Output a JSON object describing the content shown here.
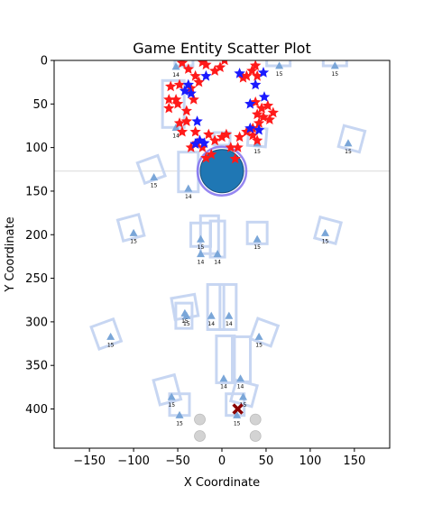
{
  "chart_data": {
    "type": "scatter",
    "title": "Game Entity Scatter Plot",
    "xlabel": "X Coordinate",
    "ylabel": "Y Coordinate",
    "xlim": [
      -190,
      190
    ],
    "ylim": [
      445,
      0
    ],
    "y_inverted": true,
    "x_ticks": [
      -150,
      -100,
      -50,
      0,
      50,
      100,
      150
    ],
    "y_ticks": [
      0,
      50,
      100,
      150,
      200,
      250,
      300,
      350,
      400
    ],
    "grid": false,
    "horizontal_line_y": 127,
    "colors": {
      "red_star": "#ff1a1a",
      "blue_star": "#1a1aff",
      "player": "#1f77b4",
      "player_ring": "#7b68ee",
      "triangle": "#7aa6d8",
      "square_outline": "#c7d6f2",
      "gray_circle": "#d3d3d3",
      "dark_x": "#8b0000"
    },
    "player": {
      "x": 0,
      "y": 127,
      "r": 24
    },
    "red_stars": [
      [
        -45,
        3
      ],
      [
        -38,
        10
      ],
      [
        -22,
        2
      ],
      [
        -18,
        5
      ],
      [
        -8,
        12
      ],
      [
        -2,
        8
      ],
      [
        3,
        0
      ],
      [
        38,
        6
      ],
      [
        34,
        12
      ],
      [
        28,
        18
      ],
      [
        24,
        20
      ],
      [
        -30,
        18
      ],
      [
        -26,
        25
      ],
      [
        -48,
        28
      ],
      [
        -35,
        32
      ],
      [
        -58,
        30
      ],
      [
        -60,
        45
      ],
      [
        -50,
        50
      ],
      [
        -40,
        58
      ],
      [
        -32,
        45
      ],
      [
        -60,
        55
      ],
      [
        -48,
        72
      ],
      [
        -45,
        82
      ],
      [
        -40,
        70
      ],
      [
        -30,
        82
      ],
      [
        -28,
        95
      ],
      [
        -35,
        100
      ],
      [
        -22,
        100
      ],
      [
        -15,
        85
      ],
      [
        -8,
        92
      ],
      [
        0,
        88
      ],
      [
        5,
        85
      ],
      [
        10,
        100
      ],
      [
        18,
        100
      ],
      [
        20,
        88
      ],
      [
        28,
        82
      ],
      [
        35,
        86
      ],
      [
        40,
        92
      ],
      [
        35,
        78
      ],
      [
        42,
        72
      ],
      [
        47,
        65
      ],
      [
        52,
        52
      ],
      [
        58,
        60
      ],
      [
        54,
        68
      ],
      [
        45,
        55
      ],
      [
        40,
        62
      ],
      [
        38,
        48
      ],
      [
        -18,
        112
      ],
      [
        -12,
        108
      ],
      [
        15,
        113
      ],
      [
        40,
        18
      ],
      [
        -52,
        45
      ]
    ],
    "blue_stars": [
      [
        -38,
        28
      ],
      [
        -42,
        35
      ],
      [
        -35,
        38
      ],
      [
        20,
        15
      ],
      [
        47,
        14
      ],
      [
        38,
        28
      ],
      [
        48,
        42
      ],
      [
        32,
        50
      ],
      [
        -28,
        70
      ],
      [
        -25,
        92
      ],
      [
        -30,
        96
      ],
      [
        -20,
        95
      ],
      [
        32,
        78
      ],
      [
        42,
        80
      ],
      [
        -18,
        18
      ]
    ],
    "triangles": [
      {
        "x": -52,
        "y": 7,
        "label": "14"
      },
      {
        "x": 65,
        "y": 6,
        "label": "15"
      },
      {
        "x": 128,
        "y": 6,
        "label": "15"
      },
      {
        "x": -52,
        "y": 77,
        "label": "14"
      },
      {
        "x": 40,
        "y": 95,
        "label": "15"
      },
      {
        "x": 143,
        "y": 95,
        "label": "15"
      },
      {
        "x": -77,
        "y": 134,
        "label": "15"
      },
      {
        "x": -38,
        "y": 147,
        "label": "14"
      },
      {
        "x": -100,
        "y": 198,
        "label": "15"
      },
      {
        "x": -24,
        "y": 205,
        "label": "15"
      },
      {
        "x": 40,
        "y": 205,
        "label": "15"
      },
      {
        "x": 117,
        "y": 198,
        "label": "15"
      },
      {
        "x": -24,
        "y": 222,
        "label": "14"
      },
      {
        "x": -5,
        "y": 222,
        "label": "14"
      },
      {
        "x": -42,
        "y": 290,
        "label": "15"
      },
      {
        "x": -40,
        "y": 293,
        "label": "15"
      },
      {
        "x": -12,
        "y": 293,
        "label": "14"
      },
      {
        "x": 8,
        "y": 293,
        "label": "14"
      },
      {
        "x": -126,
        "y": 317,
        "label": "15"
      },
      {
        "x": 42,
        "y": 317,
        "label": "15"
      },
      {
        "x": 2,
        "y": 365,
        "label": "14"
      },
      {
        "x": 21,
        "y": 365,
        "label": "14"
      },
      {
        "x": -57,
        "y": 386,
        "label": "15"
      },
      {
        "x": 24,
        "y": 386,
        "label": "15"
      },
      {
        "x": -48,
        "y": 407,
        "label": "15"
      },
      {
        "x": 17,
        "y": 407,
        "label": "15"
      }
    ],
    "squares": [
      {
        "x": -43,
        "y": 0,
        "w": 20,
        "h": 12,
        "rot": 0
      },
      {
        "x": 64,
        "y": 0,
        "w": 26,
        "h": 12,
        "rot": 0
      },
      {
        "x": 128,
        "y": 0,
        "w": 26,
        "h": 12,
        "rot": 0
      },
      {
        "x": -55,
        "y": 50,
        "w": 24,
        "h": 52,
        "rot": 0
      },
      {
        "x": 0,
        "y": 90,
        "w": 18,
        "h": 14,
        "rot": 0
      },
      {
        "x": 40,
        "y": 88,
        "w": 20,
        "h": 20,
        "rot": 5
      },
      {
        "x": 147,
        "y": 90,
        "w": 24,
        "h": 24,
        "rot": 15
      },
      {
        "x": -80,
        "y": 125,
        "w": 24,
        "h": 24,
        "rot": -20
      },
      {
        "x": -38,
        "y": 128,
        "w": 22,
        "h": 44,
        "rot": 0
      },
      {
        "x": -103,
        "y": 192,
        "w": 24,
        "h": 24,
        "rot": -15
      },
      {
        "x": -24,
        "y": 200,
        "w": 22,
        "h": 26,
        "rot": 0
      },
      {
        "x": -14,
        "y": 200,
        "w": 20,
        "h": 42,
        "rot": 0
      },
      {
        "x": -5,
        "y": 205,
        "w": 16,
        "h": 40,
        "rot": 0
      },
      {
        "x": 40,
        "y": 198,
        "w": 22,
        "h": 24,
        "rot": 0
      },
      {
        "x": 120,
        "y": 195,
        "w": 24,
        "h": 24,
        "rot": 15
      },
      {
        "x": -42,
        "y": 283,
        "w": 26,
        "h": 24,
        "rot": -10
      },
      {
        "x": -43,
        "y": 293,
        "w": 18,
        "h": 28,
        "rot": 0
      },
      {
        "x": -7,
        "y": 283,
        "w": 18,
        "h": 50,
        "rot": 0
      },
      {
        "x": 7,
        "y": 283,
        "w": 18,
        "h": 50,
        "rot": 0
      },
      {
        "x": -131,
        "y": 314,
        "w": 26,
        "h": 26,
        "rot": -20
      },
      {
        "x": 48,
        "y": 312,
        "w": 24,
        "h": 24,
        "rot": 20
      },
      {
        "x": 4,
        "y": 343,
        "w": 20,
        "h": 52,
        "rot": 0
      },
      {
        "x": 22,
        "y": 343,
        "w": 20,
        "h": 50,
        "rot": 0
      },
      {
        "x": -62,
        "y": 378,
        "w": 24,
        "h": 28,
        "rot": -15
      },
      {
        "x": 25,
        "y": 382,
        "w": 24,
        "h": 24,
        "rot": 15
      },
      {
        "x": -48,
        "y": 395,
        "w": 22,
        "h": 24,
        "rot": 0
      },
      {
        "x": 15,
        "y": 395,
        "w": 20,
        "h": 24,
        "rot": 0
      }
    ],
    "gray_circles": [
      [
        -25,
        412
      ],
      [
        38,
        412
      ],
      [
        -25,
        431
      ],
      [
        38,
        431
      ]
    ],
    "dark_x": {
      "x": 18,
      "y": 400
    }
  }
}
